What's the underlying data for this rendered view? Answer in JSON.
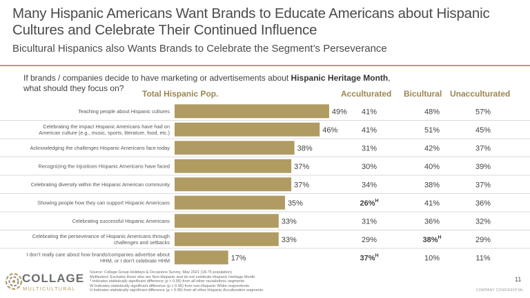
{
  "title": "Many Hispanic Americans Want Brands to Educate Americans about Hispanic Cultures and Celebrate Their Continued Influence",
  "subtitle": "Bicultural Hispanics also Wants Brands to Celebrate the Segment’s Perseverance",
  "question": {
    "prefix": "If brands / companies decide to have marketing or advertisements about ",
    "bold": "Hispanic Heritage Month",
    "suffix": ", what should they focus on?"
  },
  "headers": {
    "total": "Total Hispanic Pop.",
    "acculturated": "Acculturated",
    "bicultural": "Bicultural",
    "unacculturated": "Unacculturated"
  },
  "colors": {
    "bar": "#b09c62",
    "accent": "#9c8650",
    "rule": "#b49e63",
    "separator": "#d9d9d9"
  },
  "chart_data": {
    "type": "bar",
    "orientation": "horizontal",
    "title": "Total Hispanic Pop.",
    "xlim": [
      0,
      100
    ],
    "categories": [
      [
        "Teaching people about Hispanic cultures"
      ],
      [
        "Celebrating the impact Hispanic Americans have had on",
        "American culture (e.g., music, sports, literature, food, etc.)"
      ],
      [
        "Acknowledging the challenges Hispanic Americans face today"
      ],
      [
        "Recognizing the injustices Hispanic Americans have faced"
      ],
      [
        "Celebrating diversity within the Hispanic American community"
      ],
      [
        "Showing people how they can support Hispanic Americans"
      ],
      [
        "Celebrating successful Hispanic Americans"
      ],
      [
        "Celebrating the perseverance of Hispanic Americans through",
        "challenges and setbacks"
      ],
      [
        "I don’t really care about how brands/companies advertise about",
        "HHM, or I don’t celebrate HHM"
      ]
    ],
    "values": [
      49,
      46,
      38,
      37,
      37,
      35,
      33,
      33,
      17
    ],
    "value_labels": [
      "49%",
      "46%",
      "38%",
      "37%",
      "37%",
      "35%",
      "33%",
      "33%",
      "17%"
    ],
    "series": [
      {
        "name": "Acculturated",
        "values": [
          "41%",
          "41%",
          "31%",
          "30%",
          "34%",
          "26%",
          "31%",
          "29%",
          "37%"
        ],
        "superscripts": [
          "",
          "",
          "",
          "",
          "",
          "H",
          "",
          "",
          "H"
        ]
      },
      {
        "name": "Bicultural",
        "values": [
          "48%",
          "51%",
          "42%",
          "40%",
          "38%",
          "41%",
          "36%",
          "38%",
          "10%"
        ],
        "superscripts": [
          "",
          "",
          "",
          "",
          "",
          "",
          "",
          "H",
          ""
        ]
      },
      {
        "name": "Unacculturated",
        "values": [
          "57%",
          "45%",
          "37%",
          "39%",
          "37%",
          "36%",
          "32%",
          "29%",
          "11%"
        ],
        "superscripts": [
          "",
          "",
          "",
          "",
          "",
          "",
          "",
          "",
          ""
        ]
      }
    ]
  },
  "source": [
    "Source: Collage Group Holidays & Occasions Survey, May 2021 (18-75 population)",
    "Multiselect; Excludes those who are Non-Hispanic and do not celebrate Hispanic Heritage Month",
    "* Indicates statistically significant difference (p > 0.95) from all other racial/ethnic segments",
    "W Indicates statistically significant difference (p > 0.95) from non-Hispanic White respondents",
    "H Indicates statistically significant difference (p > 0.95) from all other Hispanic Acculturation segments"
  ],
  "page_number": "11",
  "confidential": "COMPANY CONFIDENTIAL",
  "logo": {
    "word": "COLLAGE",
    "sub": "MULTICULTURAL"
  }
}
